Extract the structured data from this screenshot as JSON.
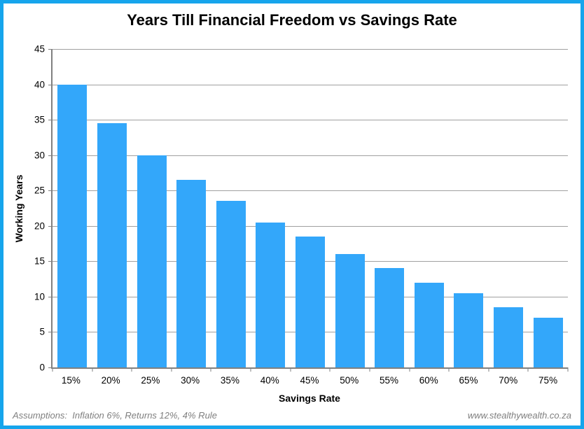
{
  "page": {
    "footer_left": "Assumptions:  Inflation 6%, Returns 12%, 4% Rule",
    "footer_right": "www.stealthywealth.co.za"
  },
  "chart_data": {
    "type": "bar",
    "title": "Years Till Financial Freedom vs Savings Rate",
    "categories": [
      "15%",
      "20%",
      "25%",
      "30%",
      "35%",
      "40%",
      "45%",
      "50%",
      "55%",
      "60%",
      "65%",
      "70%",
      "75%"
    ],
    "values": [
      40,
      34.5,
      30,
      26.5,
      23.5,
      20.5,
      18.5,
      16,
      14,
      12,
      10.5,
      8.5,
      7
    ],
    "xlabel": "Savings Rate",
    "ylabel": "Working Years",
    "ylim": [
      0,
      45
    ],
    "ytick_step": 5,
    "grid": true,
    "legend": "none",
    "colors": {
      "bar": "#33a7fa",
      "frame_border": "#16a5ec",
      "gridline": "#a0a0a0",
      "axis": "#808080",
      "footer_text": "#7f7f7f"
    }
  }
}
